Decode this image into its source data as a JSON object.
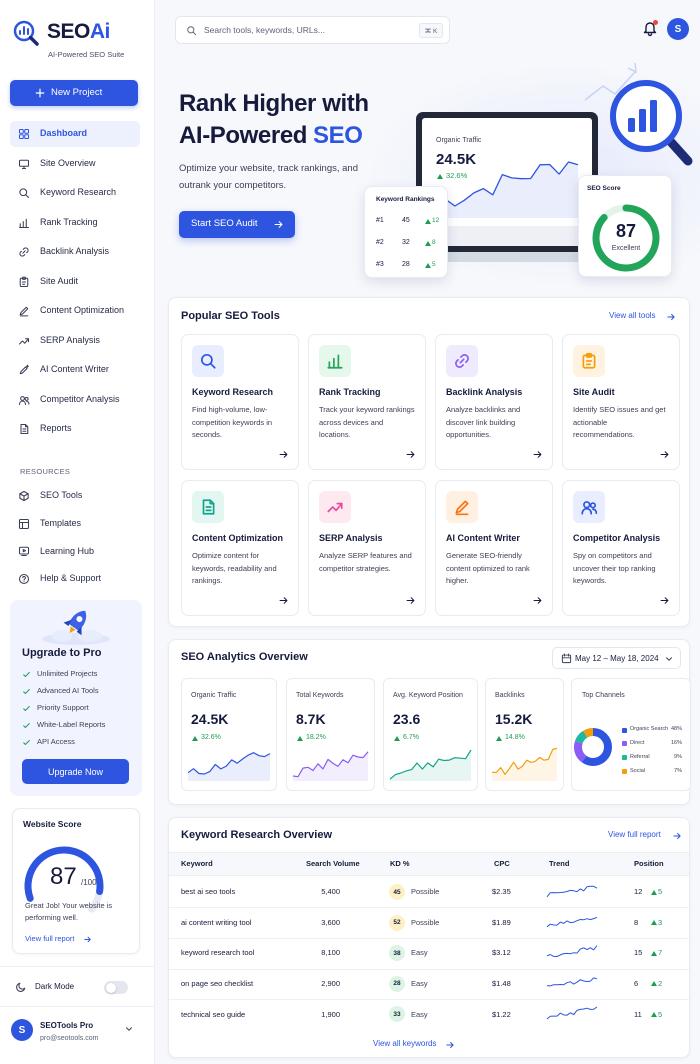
{
  "brand": {
    "name": "SEO",
    "accent": "Ai",
    "tagline": "AI-Powered SEO Suite"
  },
  "search": {
    "placeholder": "Search tools, keywords, URLs...",
    "shortcut": "⌘ K"
  },
  "user_initial": "S",
  "sidebar": {
    "new_project": "New Project",
    "nav": [
      "Dashboard",
      "Site Overview",
      "Keyword Research",
      "Rank Tracking",
      "Backlink Analysis",
      "Site Audit",
      "Content Optimization",
      "SERP Analysis",
      "AI Content Writer",
      "Competitor Analysis",
      "Reports"
    ],
    "active": 0,
    "resources_label": "RESOURCES",
    "resources": [
      "SEO Tools",
      "Templates",
      "Learning Hub",
      "Help & Support"
    ],
    "upgrade": {
      "title": "Upgrade to Pro",
      "features": [
        "Unlimited Projects",
        "Advanced AI Tools",
        "Priority Support",
        "White-Label Reports",
        "API Access"
      ],
      "button": "Upgrade Now"
    },
    "website_score": {
      "title": "Website Score",
      "score": 87,
      "max": {
        "value": 100,
        "label": "/100"
      },
      "message": "Great Job! Your website is performing well.",
      "link": "View full report"
    },
    "dark_mode": "Dark Mode",
    "account": {
      "name": "SEOTools Pro",
      "email": "pro@seotools.com"
    }
  },
  "hero": {
    "title_line1": "Rank Higher with",
    "title_line2": "AI-Powered",
    "title_accent": "SEO",
    "subtitle": "Optimize your website, track rankings, and outrank your competitors.",
    "button": "Start SEO Audit",
    "traffic": {
      "label": "Organic Traffic",
      "value": "24.5K",
      "change": "32.6%"
    },
    "rankings": {
      "title": "Keyword Rankings",
      "rows": [
        {
          "rank": "#1",
          "position": 45,
          "change": 12
        },
        {
          "rank": "#2",
          "position": 32,
          "change": 8
        },
        {
          "rank": "#3",
          "position": 28,
          "change": 5
        }
      ]
    },
    "seo_score": {
      "label": "SEO Score",
      "score": 87,
      "rating": "Excellent"
    }
  },
  "tools": {
    "title": "Popular SEO Tools",
    "link": "View all tools",
    "items": [
      {
        "name": "Keyword Research",
        "description": "Find high-volume, low-competition keywords in seconds."
      },
      {
        "name": "Rank Tracking",
        "description": "Track your keyword rankings across devices and locations."
      },
      {
        "name": "Backlink Analysis",
        "description": "Analyze backlinks and discover link building opportunities."
      },
      {
        "name": "Site Audit",
        "description": "Identify SEO issues and get actionable recommendations."
      },
      {
        "name": "Content Optimization",
        "description": "Optimize content for keywords, readability and rankings."
      },
      {
        "name": "SERP Analysis",
        "description": "Analyze SERP features and competitor strategies."
      },
      {
        "name": "AI Content Writer",
        "description": "Generate SEO-friendly content optimized to rank higher."
      },
      {
        "name": "Competitor Analysis",
        "description": "Spy on competitors and uncover their top ranking keywords."
      }
    ]
  },
  "analytics": {
    "title": "SEO Analytics Overview",
    "date_range": "May 12 – May 18, 2024",
    "cards": [
      {
        "label": "Organic Traffic",
        "value": "24.5K",
        "change": "32.6%",
        "color": "#2d55e0"
      },
      {
        "label": "Total Keywords",
        "value": "8.7K",
        "change": "18.2%",
        "color": "#8b5cf6"
      },
      {
        "label": "Avg. Keyword Position",
        "value": "23.6",
        "change": "6.7%",
        "color": "#14a38b"
      },
      {
        "label": "Backlinks",
        "value": "15.2K",
        "change": "14.8%",
        "color": "#f59e0b"
      }
    ],
    "channels": {
      "title": "Top Channels",
      "names": [
        "Organic Search",
        "Direct",
        "Referral",
        "Social"
      ],
      "values": [
        48,
        16,
        9,
        7
      ],
      "value_labels": [
        "48%",
        "16%",
        "9%",
        "7%"
      ],
      "colors": [
        "#2d55e0",
        "#8b5cf6",
        "#22b8a0",
        "#f59e0b"
      ]
    }
  },
  "keywords": {
    "title": "Keyword Research Overview",
    "link": "View full report",
    "columns": [
      "Keyword",
      "Search Volume",
      "KD %",
      "CPC",
      "Trend",
      "Position"
    ],
    "rows": [
      {
        "keyword": "best ai seo tools",
        "volume": "5,400",
        "kd": 45,
        "difficulty": "Possible",
        "cpc": "$2.35",
        "position": 12,
        "change": 5
      },
      {
        "keyword": "ai content writing tool",
        "volume": "3,600",
        "kd": 52,
        "difficulty": "Possible",
        "cpc": "$1.89",
        "position": 8,
        "change": 3
      },
      {
        "keyword": "keyword research tool",
        "volume": "8,100",
        "kd": 38,
        "difficulty": "Easy",
        "cpc": "$3.12",
        "position": 15,
        "change": 7
      },
      {
        "keyword": "on page seo checklist",
        "volume": "2,900",
        "kd": 28,
        "difficulty": "Easy",
        "cpc": "$1.48",
        "position": 6,
        "change": 2
      },
      {
        "keyword": "technical seo guide",
        "volume": "1,900",
        "kd": 33,
        "difficulty": "Easy",
        "cpc": "$1.22",
        "position": 11,
        "change": 5
      }
    ],
    "footer_link": "View all keywords"
  }
}
